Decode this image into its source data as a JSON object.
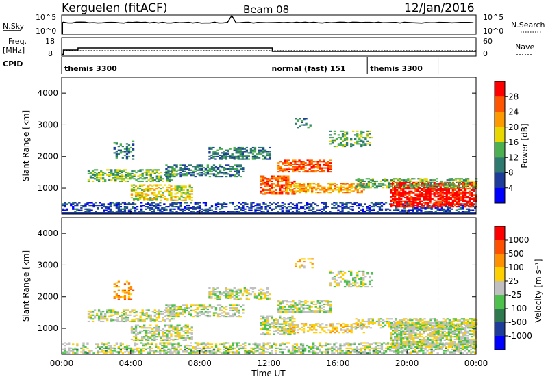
{
  "header": {
    "station": "Kerguelen (fitACF)",
    "beam": "Beam 08",
    "date": "12/Jan/2016"
  },
  "top_panels": {
    "nsky_label": "N.Sky",
    "nsky_ticks": [
      "10^5",
      "10^0"
    ],
    "nsearch_label": "N.Search",
    "nsearch_ticks": [
      "10^5",
      "10^0"
    ],
    "freq_label": "Freq.",
    "freq_unit": "[MHz]",
    "freq_ticks": [
      "18",
      "8"
    ],
    "nave_label": "Nave",
    "nave_ticks": [
      "60",
      "0"
    ],
    "cpid_label": "CPID",
    "cpid_segments": [
      {
        "label": "themis 3300",
        "start_hour": 0,
        "end_hour": 12
      },
      {
        "label": "normal (fast) 151",
        "start_hour": 12,
        "end_hour": 17.7
      },
      {
        "label": "themis 3300",
        "start_hour": 17.7,
        "end_hour": 21.8
      }
    ],
    "freq_series": [
      {
        "hour": 0,
        "mhz": 8.3
      },
      {
        "hour": 0.1,
        "mhz": 11.5
      },
      {
        "hour": 0.95,
        "mhz": 13.0
      },
      {
        "hour": 12.1,
        "mhz": 13.0
      },
      {
        "hour": 12.2,
        "mhz": 10.5
      },
      {
        "hour": 24,
        "mhz": 10.5
      }
    ],
    "nave_level": 22
  },
  "chart_data": [
    {
      "type": "heatmap",
      "name": "power",
      "ylabel": "Slant Range [km]",
      "ylim": [
        180,
        4500
      ],
      "yticks": [
        1000,
        2000,
        3000,
        4000
      ],
      "colorbar": {
        "label": "Power [dB]",
        "ticks": [
          "4",
          "8",
          "12",
          "16",
          "20",
          "24",
          "28"
        ],
        "colors": [
          "#0000ff",
          "#1e3c9a",
          "#2e7a6e",
          "#4caf50",
          "#e8d800",
          "#ff9900",
          "#ff5500",
          "#ff0000"
        ]
      },
      "regions": [
        {
          "t0": 0.0,
          "t1": 24.0,
          "r0": 200,
          "r1": 550,
          "level": 1,
          "density": 0.45
        },
        {
          "t0": 1.5,
          "t1": 6.5,
          "r0": 1200,
          "r1": 1600,
          "level": 3,
          "density": 0.55
        },
        {
          "t0": 4.0,
          "t1": 7.5,
          "r0": 600,
          "r1": 1100,
          "level": 4,
          "density": 0.55
        },
        {
          "t0": 6.0,
          "t1": 10.5,
          "r0": 1350,
          "r1": 1750,
          "level": 2,
          "density": 0.5
        },
        {
          "t0": 8.5,
          "t1": 12.0,
          "r0": 1900,
          "r1": 2300,
          "level": 2,
          "density": 0.55
        },
        {
          "t0": 3.0,
          "t1": 4.2,
          "r0": 1900,
          "r1": 2500,
          "level": 2,
          "density": 0.35
        },
        {
          "t0": 11.5,
          "t1": 13.5,
          "r0": 800,
          "r1": 1400,
          "level": 6,
          "density": 0.65
        },
        {
          "t0": 12.5,
          "t1": 15.5,
          "r0": 1500,
          "r1": 1900,
          "level": 6,
          "density": 0.6
        },
        {
          "t0": 13.0,
          "t1": 17.5,
          "r0": 850,
          "r1": 1150,
          "level": 5,
          "density": 0.55
        },
        {
          "t0": 15.5,
          "t1": 18.0,
          "r0": 2300,
          "r1": 2800,
          "level": 3,
          "density": 0.45
        },
        {
          "t0": 19.0,
          "t1": 24.0,
          "r0": 400,
          "r1": 1200,
          "level": 7,
          "density": 0.75
        },
        {
          "t0": 17.0,
          "t1": 24.0,
          "r0": 1000,
          "r1": 1300,
          "level": 3,
          "density": 0.5
        },
        {
          "t0": 13.5,
          "t1": 14.5,
          "r0": 2900,
          "r1": 3200,
          "level": 2,
          "density": 0.3
        }
      ]
    },
    {
      "type": "heatmap",
      "name": "velocity",
      "ylabel": "Slant Range [km]",
      "xlabel": "Time UT",
      "ylim": [
        180,
        4500
      ],
      "yticks": [
        1000,
        2000,
        3000,
        4000
      ],
      "xticks": [
        "00:00",
        "04:00",
        "08:00",
        "12:00",
        "16:00",
        "20:00",
        "00:00"
      ],
      "colorbar": {
        "label": "Velocity [m s⁻¹]",
        "ticks": [
          "1000",
          "500",
          "100",
          "25",
          "-25",
          "-100",
          "-500",
          "-1000"
        ],
        "colors": [
          "#0000ff",
          "#1e3c9a",
          "#2e7a4e",
          "#4cc24c",
          "#c0c0c0",
          "#ffd000",
          "#ff9000",
          "#ff5000",
          "#ff0000"
        ]
      },
      "regions": [
        {
          "t0": 0.0,
          "t1": 24.0,
          "r0": 200,
          "r1": 550,
          "level": 4,
          "density": 0.45
        },
        {
          "t0": 1.5,
          "t1": 6.5,
          "r0": 1200,
          "r1": 1600,
          "level": 4,
          "density": 0.5
        },
        {
          "t0": 4.0,
          "t1": 7.5,
          "r0": 600,
          "r1": 1100,
          "level": 4,
          "density": 0.55
        },
        {
          "t0": 6.0,
          "t1": 10.5,
          "r0": 1350,
          "r1": 1750,
          "level": 4,
          "density": 0.5
        },
        {
          "t0": 8.5,
          "t1": 12.0,
          "r0": 1900,
          "r1": 2300,
          "level": 4,
          "density": 0.55
        },
        {
          "t0": 3.0,
          "t1": 4.2,
          "r0": 1900,
          "r1": 2500,
          "level": 6,
          "density": 0.35
        },
        {
          "t0": 11.5,
          "t1": 13.5,
          "r0": 800,
          "r1": 1400,
          "level": 4,
          "density": 0.6
        },
        {
          "t0": 12.5,
          "t1": 15.5,
          "r0": 1500,
          "r1": 1900,
          "level": 4,
          "density": 0.6
        },
        {
          "t0": 13.0,
          "t1": 17.5,
          "r0": 850,
          "r1": 1150,
          "level": 5,
          "density": 0.45
        },
        {
          "t0": 15.5,
          "t1": 18.0,
          "r0": 2300,
          "r1": 2800,
          "level": 4,
          "density": 0.45
        },
        {
          "t0": 19.0,
          "t1": 24.0,
          "r0": 400,
          "r1": 1200,
          "level": 4,
          "density": 0.75
        },
        {
          "t0": 17.0,
          "t1": 24.0,
          "r0": 1000,
          "r1": 1300,
          "level": 4,
          "density": 0.5
        },
        {
          "t0": 13.5,
          "t1": 14.5,
          "r0": 2900,
          "r1": 3200,
          "level": 5,
          "density": 0.3
        },
        {
          "t0": 0.0,
          "t1": 24.0,
          "r0": 200,
          "r1": 400,
          "level": 3,
          "density": 0.15
        }
      ]
    }
  ]
}
